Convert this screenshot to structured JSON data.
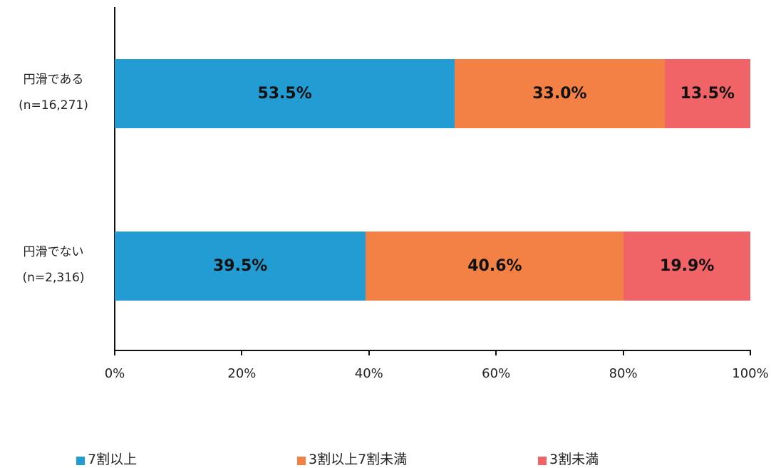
{
  "chart_data": {
    "type": "bar",
    "orientation": "horizontal",
    "stacked": true,
    "percent": true,
    "title": "",
    "xlabel": "",
    "ylabel": "",
    "xlim": [
      0,
      100
    ],
    "x_ticks": [
      "0%",
      "20%",
      "40%",
      "60%",
      "80%",
      "100%"
    ],
    "categories": [
      {
        "name": "円滑である",
        "n": "(n=16,271)"
      },
      {
        "name": "円滑でない",
        "n": "(n=2,316)"
      }
    ],
    "series": [
      {
        "name": "7割以上",
        "color": "#239CD3",
        "values": [
          53.5,
          39.5
        ],
        "labels": [
          "53.5%",
          "39.5%"
        ]
      },
      {
        "name": "3割以上7割未満",
        "color": "#F38044",
        "values": [
          33.0,
          40.6
        ],
        "labels": [
          "33.0%",
          "40.6%"
        ]
      },
      {
        "name": "3割未満",
        "color": "#F06366",
        "values": [
          13.5,
          19.9
        ],
        "labels": [
          "13.5%",
          "19.9%"
        ]
      }
    ],
    "legend_position": "bottom",
    "grid": false
  }
}
